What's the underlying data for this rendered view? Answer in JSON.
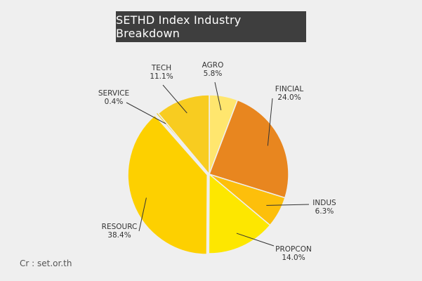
{
  "chart_data": {
    "type": "pie",
    "title": "SETHD Index Industry Breakdown",
    "categories": [
      "AGRO",
      "FINCIAL",
      "INDUS",
      "PROPCON",
      "RESOURC",
      "SERVICE",
      "TECH"
    ],
    "values": [
      5.8,
      24.0,
      6.3,
      14.0,
      38.4,
      0.4,
      11.1
    ],
    "value_labels": [
      "5.8%",
      "24.0%",
      "6.3%",
      "14.0%",
      "38.4%",
      "0.4%",
      "11.1%"
    ],
    "colors": [
      "#ffe66e",
      "#e8861f",
      "#fdbf0b",
      "#fde700",
      "#fdd000",
      "#f2cf27",
      "#f8cc20"
    ]
  },
  "credit": "Cr : set.or.th"
}
